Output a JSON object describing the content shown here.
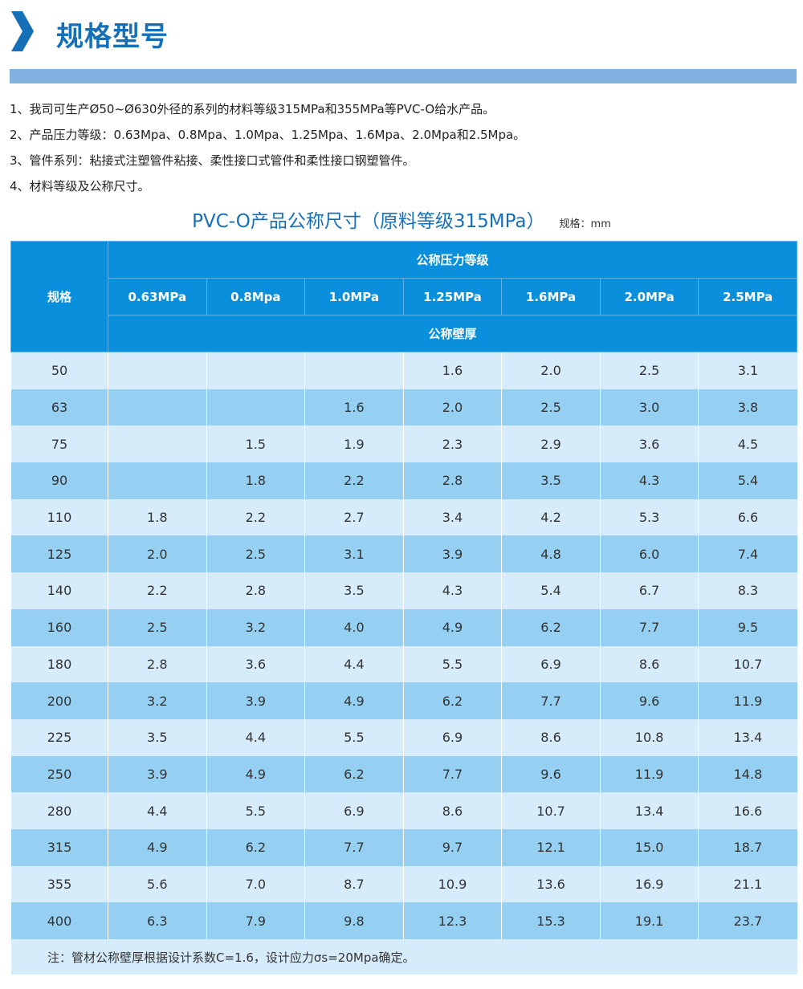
{
  "header": {
    "title": "规格型号",
    "accent": "#1670b8"
  },
  "intro": [
    "1、我司可生产Ø50~Ø630外径的系列的材料等级315MPa和355MPa等PVC-O给水产品。",
    "2、产品压力等级：0.63Mpa、0.8Mpa、1.0Mpa、1.25Mpa、1.6Mpa、2.0Mpa和2.5Mpa。",
    "3、管件系列：粘接式注塑管件粘接、柔性接口式管件和柔性接口钢塑管件。",
    "4、材料等级及公称尺寸。"
  ],
  "table_title": "PVC-O产品公称尺寸（原料等级315MPa）",
  "table_unit": "规格：mm",
  "table": {
    "spec_header": "规格",
    "pressure_header": "公称压力等级",
    "thickness_header": "公称壁厚",
    "columns": [
      "0.63MPa",
      "0.8Mpa",
      "1.0MPa",
      "1.25MPa",
      "1.6MPa",
      "2.0MPa",
      "2.5MPa"
    ],
    "rows": [
      [
        "50",
        "",
        "",
        "",
        "1.6",
        "2.0",
        "2.5",
        "3.1"
      ],
      [
        "63",
        "",
        "",
        "1.6",
        "2.0",
        "2.5",
        "3.0",
        "3.8"
      ],
      [
        "75",
        "",
        "1.5",
        "1.9",
        "2.3",
        "2.9",
        "3.6",
        "4.5"
      ],
      [
        "90",
        "",
        "1.8",
        "2.2",
        "2.8",
        "3.5",
        "4.3",
        "5.4"
      ],
      [
        "110",
        "1.8",
        "2.2",
        "2.7",
        "3.4",
        "4.2",
        "5.3",
        "6.6"
      ],
      [
        "125",
        "2.0",
        "2.5",
        "3.1",
        "3.9",
        "4.8",
        "6.0",
        "7.4"
      ],
      [
        "140",
        "2.2",
        "2.8",
        "3.5",
        "4.3",
        "5.4",
        "6.7",
        "8.3"
      ],
      [
        "160",
        "2.5",
        "3.2",
        "4.0",
        "4.9",
        "6.2",
        "7.7",
        "9.5"
      ],
      [
        "180",
        "2.8",
        "3.6",
        "4.4",
        "5.5",
        "6.9",
        "8.6",
        "10.7"
      ],
      [
        "200",
        "3.2",
        "3.9",
        "4.9",
        "6.2",
        "7.7",
        "9.6",
        "11.9"
      ],
      [
        "225",
        "3.5",
        "4.4",
        "5.5",
        "6.9",
        "8.6",
        "10.8",
        "13.4"
      ],
      [
        "250",
        "3.9",
        "4.9",
        "6.2",
        "7.7",
        "9.6",
        "11.9",
        "14.8"
      ],
      [
        "280",
        "4.4",
        "5.5",
        "6.9",
        "8.6",
        "10.7",
        "13.4",
        "16.6"
      ],
      [
        "315",
        "4.9",
        "6.2",
        "7.7",
        "9.7",
        "12.1",
        "15.0",
        "18.7"
      ],
      [
        "355",
        "5.6",
        "7.0",
        "8.7",
        "10.9",
        "13.6",
        "16.9",
        "21.1"
      ],
      [
        "400",
        "6.3",
        "7.9",
        "9.8",
        "12.3",
        "15.3",
        "19.1",
        "23.7"
      ]
    ],
    "note": "注：管材公称壁厚根据设计系数C=1.6，设计应力σs=20Mpa确定。"
  }
}
